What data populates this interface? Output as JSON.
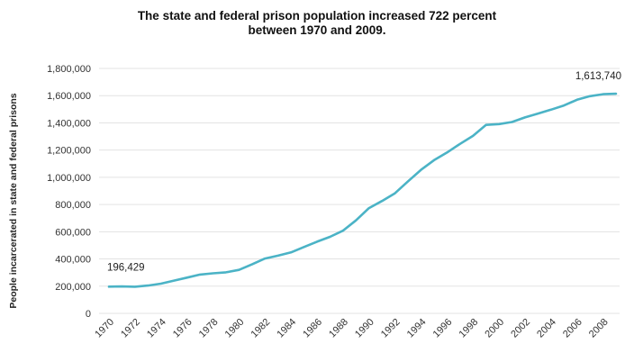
{
  "chart_data": {
    "type": "line",
    "title_lines": [
      "The state and federal prison population increased 722 percent",
      "between 1970 and 2009."
    ],
    "xlabel": "",
    "ylabel": "People incarcerated in state and federal prisons",
    "ylim": [
      0,
      1800000
    ],
    "y_ticks": [
      "0",
      "200,000",
      "400,000",
      "600,000",
      "800,000",
      "1,000,000",
      "1,200,000",
      "1,400,000",
      "1,600,000",
      "1,800,000"
    ],
    "x_ticks": [
      "1970",
      "1972",
      "1974",
      "1976",
      "1978",
      "1980",
      "1982",
      "1984",
      "1986",
      "1988",
      "1990",
      "1992",
      "1994",
      "1996",
      "1998",
      "2000",
      "2002",
      "2004",
      "2006",
      "2008"
    ],
    "grid": true,
    "line_color": "#4BB3C6",
    "series": [
      {
        "x": [
          1970,
          1971,
          1972,
          1973,
          1974,
          1975,
          1976,
          1977,
          1978,
          1979,
          1980,
          1981,
          1982,
          1983,
          1984,
          1985,
          1986,
          1987,
          1988,
          1989,
          1990,
          1991,
          1992,
          1993,
          1994,
          1995,
          1996,
          1997,
          1998,
          1999,
          2000,
          2001,
          2002,
          2003,
          2004,
          2005,
          2006,
          2007,
          2008,
          2009
        ],
        "values": [
          196429,
          198061,
          196092,
          204211,
          218466,
          240593,
          262833,
          285456,
          294396,
          301470,
          319598,
          360029,
          402914,
          423898,
          448264,
          487593,
          526436,
          562814,
          607766,
          683367,
          773919,
          825559,
          882500,
          970444,
          1054702,
          1125874,
          1182169,
          1245402,
          1304074,
          1385000,
          1391261,
          1406031,
          1440144,
          1468601,
          1497100,
          1527929,
          1569945,
          1596127,
          1610446,
          1613740
        ]
      }
    ],
    "annotations": {
      "start_label": "196,429",
      "end_label": "1,613,740"
    }
  }
}
